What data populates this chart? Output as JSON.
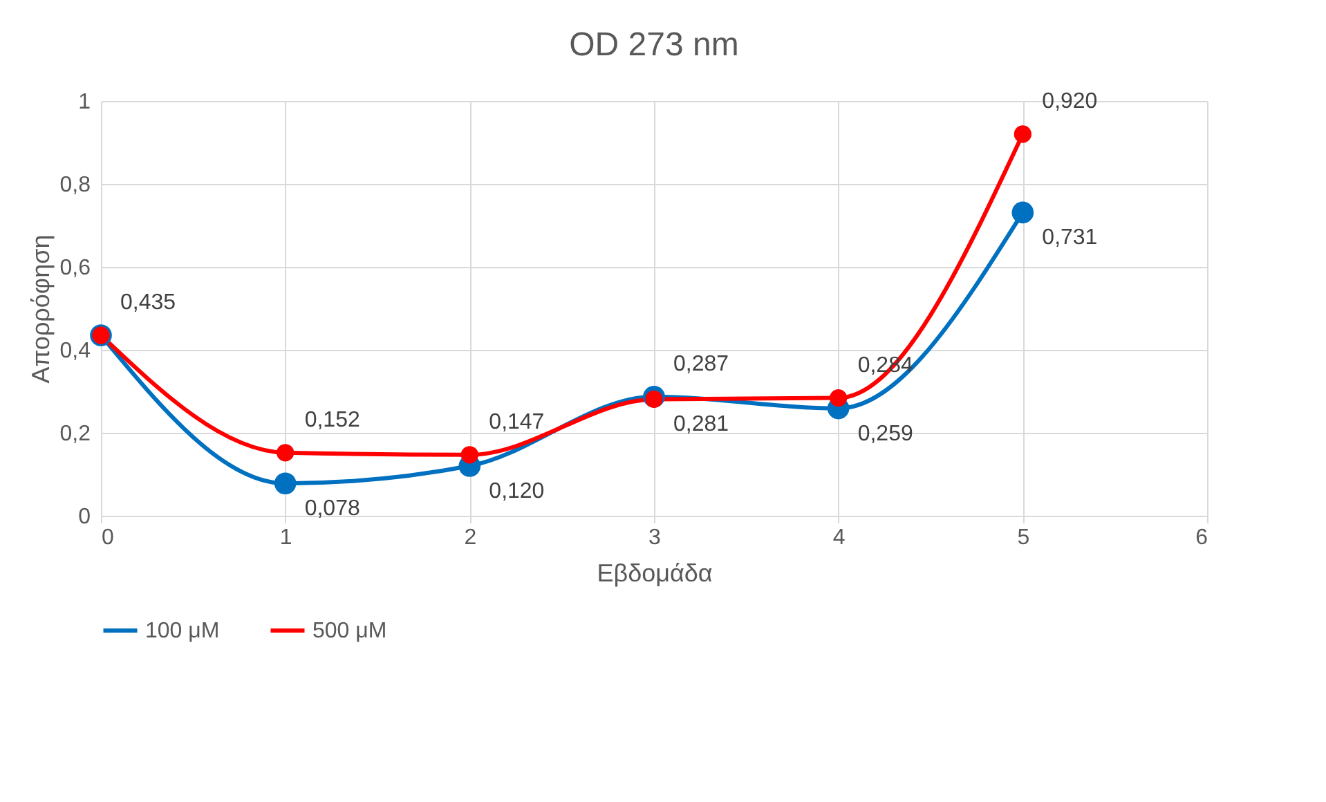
{
  "chart_data": {
    "type": "line",
    "title": "OD 273 nm",
    "xlabel": "Εβδομάδα",
    "ylabel": "Απορρόφηση",
    "x": [
      0,
      1,
      2,
      3,
      4,
      5
    ],
    "series": [
      {
        "name": "100 μM",
        "color": "#0070c0",
        "values": [
          0.435,
          0.078,
          0.12,
          0.287,
          0.259,
          0.731
        ],
        "value_labels": [
          null,
          "0,078",
          "0,120",
          "0,287",
          "0,259",
          "0,731"
        ]
      },
      {
        "name": "500 μM",
        "color": "#ff0000",
        "values": [
          0.435,
          0.152,
          0.147,
          0.281,
          0.284,
          0.92
        ],
        "value_labels": [
          "0,435",
          "0,152",
          "0,147",
          "0,281",
          "0,284",
          "0,920"
        ]
      }
    ],
    "xlim": [
      0,
      6
    ],
    "xticks": [
      0,
      1,
      2,
      3,
      4,
      5,
      6
    ],
    "ylim": [
      0,
      1
    ],
    "yticks": [
      0,
      {
        "value": 0.2,
        "label": "0,2"
      },
      {
        "value": 0.4,
        "label": "0,4"
      },
      {
        "value": 0.6,
        "label": "0,6"
      },
      {
        "value": 0.8,
        "label": "0,8"
      },
      1
    ],
    "grid": true,
    "legend": "bottom",
    "marker": "circle",
    "line_style": "solid"
  }
}
